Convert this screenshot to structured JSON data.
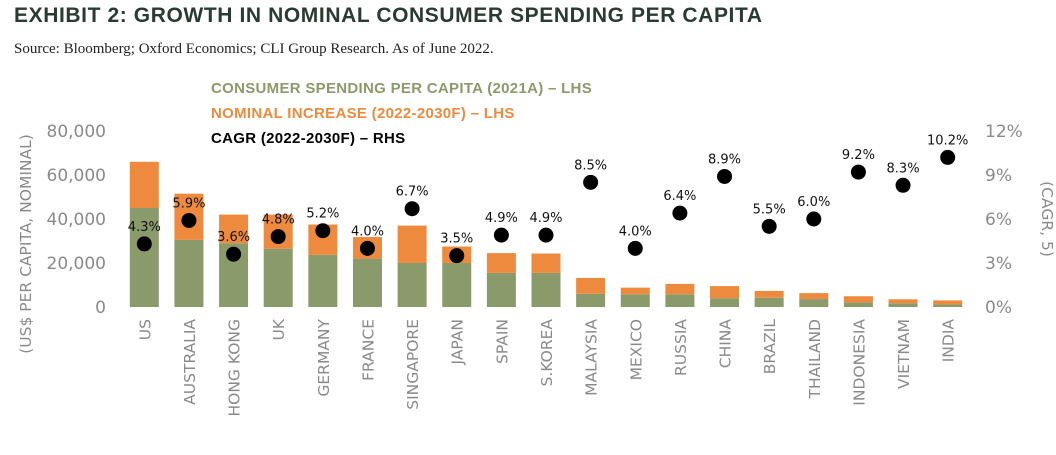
{
  "title": "EXHIBIT 2: GROWTH IN NOMINAL CONSUMER SPENDING PER CAPITA",
  "source": "Source: Bloomberg; Oxford Economics; CLI Group Research. As of June 2022.",
  "colors": {
    "base": "#8a9a6a",
    "increase": "#ee8a3d",
    "cagr": "#000000",
    "axis_text": "#8a8a8a"
  },
  "chart_data": {
    "type": "bar",
    "stacked": true,
    "categories": [
      "US",
      "AUSTRALIA",
      "HONG KONG",
      "UK",
      "GERMANY",
      "FRANCE",
      "SINGAPORE",
      "JAPAN",
      "SPAIN",
      "S.KOREA",
      "MALAYSIA",
      "MEXICO",
      "RUSSIA",
      "CHINA",
      "BRAZIL",
      "THAILAND",
      "INDONESIA",
      "VIETNAM",
      "INDIA"
    ],
    "series": [
      {
        "name": "CONSUMER SPENDING PER CAPITA (2021A) – LHS",
        "type": "bar",
        "axis": "left",
        "values": [
          45000,
          30500,
          29000,
          26500,
          23700,
          22000,
          20000,
          20000,
          15500,
          15500,
          6000,
          5800,
          5800,
          4000,
          4200,
          3600,
          2100,
          1700,
          1200
        ]
      },
      {
        "name": "NOMINAL INCREASE (2022-2030F) – LHS",
        "type": "bar",
        "axis": "left",
        "values": [
          21000,
          21000,
          13000,
          15500,
          13800,
          9800,
          17000,
          7500,
          9000,
          8800,
          7200,
          3000,
          4700,
          5500,
          3100,
          2700,
          2800,
          1800,
          1800
        ]
      },
      {
        "name": "CAGR (2022-2030F) – RHS",
        "type": "scatter",
        "axis": "right",
        "values": [
          4.3,
          5.9,
          3.6,
          4.8,
          5.2,
          4.0,
          6.7,
          3.5,
          4.9,
          4.9,
          8.5,
          4.0,
          6.4,
          8.9,
          5.5,
          6.0,
          9.2,
          8.3,
          10.2
        ],
        "labels": [
          "4.3%",
          "5.9%",
          "3.6%",
          "4.8%",
          "5.2%",
          "4.0%",
          "6.7%",
          "3.5%",
          "4.9%",
          "4.9%",
          "8.5%",
          "4.0%",
          "6.4%",
          "8.9%",
          "5.5%",
          "6.0%",
          "9.2%",
          "8.3%",
          "10.2%"
        ]
      }
    ],
    "y_left": {
      "label": "(US$ PER CAPITA, NOMINAL)",
      "ylim": [
        0,
        80000
      ],
      "ticks": [
        "0",
        "20,000",
        "40,000",
        "60,000",
        "80,000"
      ],
      "tick_values": [
        0,
        20000,
        40000,
        60000,
        80000
      ]
    },
    "y_right": {
      "label": "(CAGR, 5)",
      "ylim": [
        0,
        12
      ],
      "ticks": [
        "0%",
        "3%",
        "6%",
        "9%",
        "12%"
      ],
      "tick_values": [
        0,
        3,
        6,
        9,
        12
      ]
    },
    "grid": false,
    "legend_position": "top"
  }
}
